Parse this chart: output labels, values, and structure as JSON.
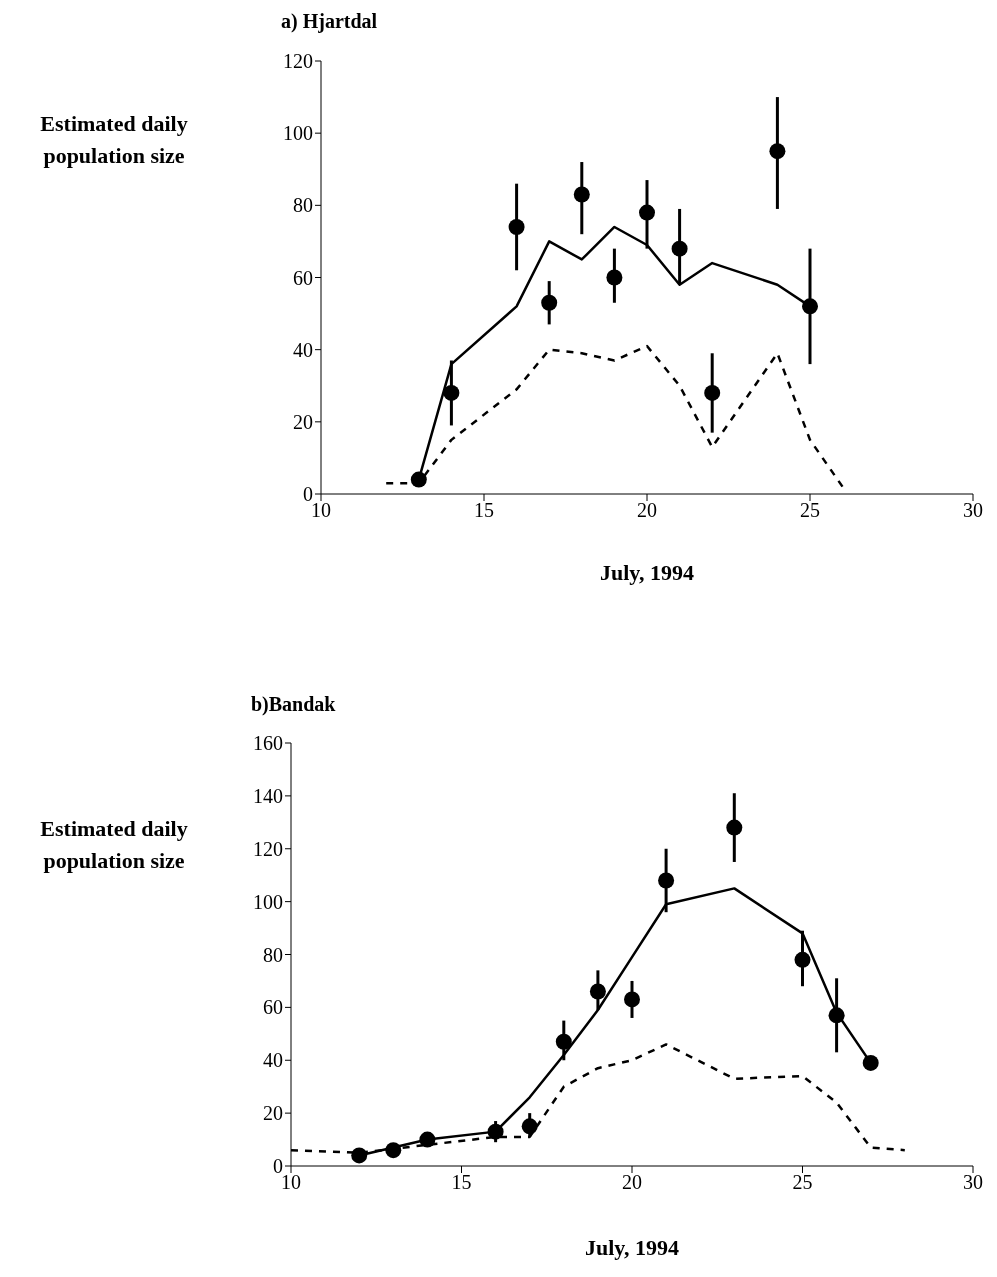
{
  "chart_data": [
    {
      "type": "line",
      "title": "a) Hjartdal",
      "xlabel": "July, 1994",
      "ylabel": "Estimated daily population size",
      "xlim": [
        10,
        30
      ],
      "xticks": [
        10,
        15,
        20,
        25,
        30
      ],
      "ylim": [
        0,
        120
      ],
      "yticks": [
        0,
        20,
        40,
        60,
        80,
        100,
        120
      ],
      "grid": false,
      "legend": false,
      "series": [
        {
          "type": "line",
          "color": "#000000",
          "line_style": "solid",
          "marker": "none",
          "x": [
            13,
            14,
            16,
            17,
            18,
            19,
            20,
            21,
            22,
            24,
            25
          ],
          "values": [
            4,
            36,
            52,
            70,
            65,
            74,
            69,
            58,
            64,
            58,
            52
          ]
        },
        {
          "type": "line",
          "color": "#000000",
          "line_style": "dashed",
          "marker": "none",
          "x": [
            12,
            13,
            14,
            16,
            17,
            18,
            19,
            20,
            21,
            22,
            24,
            25,
            26
          ],
          "values": [
            3,
            3,
            15,
            29,
            40,
            39,
            37,
            41,
            30,
            13,
            39,
            15,
            2
          ]
        },
        {
          "type": "scatter",
          "color": "#000000",
          "marker": "circle",
          "x": [
            13,
            14,
            16,
            17,
            18,
            19,
            20,
            21,
            22,
            24,
            25
          ],
          "values": [
            4,
            28,
            74,
            53,
            83,
            60,
            78,
            68,
            28,
            95,
            52
          ],
          "errors": [
            null,
            [
              19,
              37
            ],
            [
              62,
              86
            ],
            [
              47,
              59
            ],
            [
              72,
              92
            ],
            [
              53,
              68
            ],
            [
              68,
              87
            ],
            [
              58,
              79
            ],
            [
              17,
              39
            ],
            [
              79,
              110
            ],
            [
              36,
              68
            ]
          ]
        }
      ]
    },
    {
      "type": "line",
      "title": "b)Bandak",
      "xlabel": "July, 1994",
      "ylabel": "Estimated daily population size",
      "xlim": [
        10,
        30
      ],
      "xticks": [
        10,
        15,
        20,
        25,
        30
      ],
      "ylim": [
        0,
        160
      ],
      "yticks": [
        0,
        20,
        40,
        60,
        80,
        100,
        120,
        140,
        160
      ],
      "grid": false,
      "legend": false,
      "series": [
        {
          "type": "line",
          "color": "#000000",
          "line_style": "solid",
          "marker": "none",
          "x": [
            12,
            13,
            14,
            16,
            17,
            18,
            19,
            20,
            21,
            23,
            25,
            26,
            27
          ],
          "values": [
            4,
            7,
            10,
            13,
            26,
            42,
            59,
            79,
            99,
            105,
            88,
            58,
            39
          ]
        },
        {
          "type": "line",
          "color": "#000000",
          "line_style": "dashed",
          "marker": "none",
          "x": [
            10,
            12,
            14,
            16,
            17,
            18,
            19,
            20,
            21,
            23,
            25,
            26,
            27,
            28
          ],
          "values": [
            6,
            5,
            8,
            11,
            11,
            30,
            37,
            40,
            46,
            33,
            34,
            24,
            7,
            6
          ]
        },
        {
          "type": "scatter",
          "color": "#000000",
          "marker": "circle",
          "x": [
            12,
            13,
            14,
            16,
            17,
            18,
            19,
            20,
            21,
            23,
            25,
            26,
            27
          ],
          "values": [
            4,
            6,
            10,
            13,
            15,
            47,
            66,
            63,
            108,
            128,
            78,
            57,
            39
          ],
          "errors": [
            null,
            null,
            null,
            [
              9,
              17
            ],
            [
              11,
              20
            ],
            [
              40,
              55
            ],
            [
              59,
              74
            ],
            [
              56,
              70
            ],
            [
              96,
              120
            ],
            [
              115,
              141
            ],
            [
              68,
              89
            ],
            [
              43,
              71
            ],
            null
          ]
        }
      ]
    }
  ]
}
